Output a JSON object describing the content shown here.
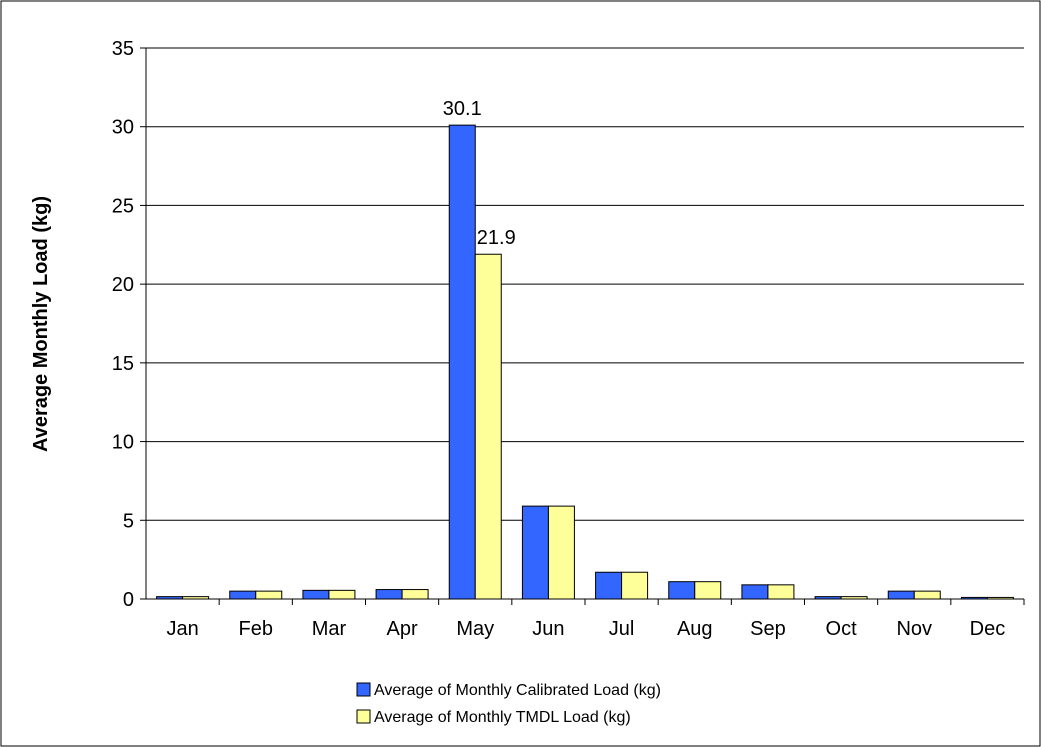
{
  "chart_data": {
    "type": "bar",
    "title": "",
    "xlabel": "",
    "ylabel": "Average Monthly Load (kg)",
    "ylim": [
      0,
      35
    ],
    "yticks": [
      0,
      5,
      10,
      15,
      20,
      25,
      30,
      35
    ],
    "grid": true,
    "legend_position": "bottom",
    "categories": [
      "Jan",
      "Feb",
      "Mar",
      "Apr",
      "May",
      "Jun",
      "Jul",
      "Aug",
      "Sep",
      "Oct",
      "Nov",
      "Dec"
    ],
    "series": [
      {
        "name": "Average of  Monthly Calibrated Load (kg)",
        "color": "#3366FF",
        "values": [
          0.15,
          0.5,
          0.55,
          0.6,
          30.1,
          5.9,
          1.7,
          1.1,
          0.9,
          0.15,
          0.5,
          0.1
        ]
      },
      {
        "name": "Average of  Monthly TMDL Load (kg)",
        "color": "#FFFF99",
        "values": [
          0.15,
          0.5,
          0.55,
          0.6,
          21.9,
          5.9,
          1.7,
          1.1,
          0.9,
          0.15,
          0.5,
          0.1
        ]
      }
    ],
    "data_labels": [
      {
        "series": 0,
        "category": "May",
        "text": "30.1"
      },
      {
        "series": 1,
        "category": "May",
        "text": "21.9"
      }
    ]
  }
}
